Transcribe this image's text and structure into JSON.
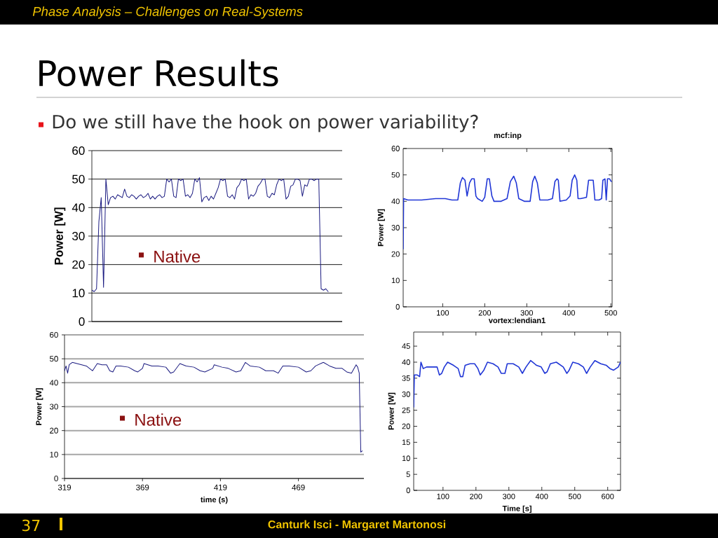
{
  "chart_data": [
    {
      "type": "other",
      "title": "Power Results",
      "annotations": [
        "Phase Analysis – Challenges on Real-Systems",
        "Do we still have the hook on power variability?",
        "37",
        "Canturk Isci - Margaret Martonosi"
      ]
    },
    {
      "type": "line",
      "ylabel": "Power [W]",
      "color": "#1a1a80",
      "ylim": [
        0,
        60
      ],
      "yticks": [
        0,
        10,
        20,
        30,
        40,
        50,
        60
      ],
      "grid": "y",
      "annotations": [
        "Native"
      ],
      "categories": [
        null,
        null,
        null,
        null,
        null,
        null,
        null,
        null,
        null,
        null,
        null,
        null,
        null,
        null,
        null,
        null,
        null,
        null,
        null,
        null,
        null,
        null,
        null,
        null,
        null,
        null,
        null,
        null,
        null,
        null,
        null,
        null,
        null,
        null,
        null,
        null,
        null,
        null,
        null,
        null,
        null,
        null,
        null,
        null,
        null,
        null,
        null,
        null,
        null,
        null,
        null,
        null,
        null,
        null,
        null,
        null,
        null,
        null,
        null,
        null,
        null,
        null,
        null,
        null,
        null,
        null,
        null,
        null,
        null,
        null,
        null,
        null,
        null,
        null,
        null,
        null,
        null,
        null,
        null,
        null,
        null,
        null,
        null,
        null,
        null,
        null,
        null,
        null,
        null,
        null,
        null,
        null,
        null,
        null,
        null,
        null,
        null,
        null,
        null,
        null,
        null,
        null,
        null,
        null,
        null,
        null,
        null,
        null
      ],
      "values": [
        11,
        10.5,
        11.5,
        35,
        43.5,
        12,
        50,
        41,
        43.5,
        44,
        43,
        44.5,
        44,
        43.5,
        46.5,
        44,
        43.5,
        44.5,
        44,
        43,
        44,
        44.5,
        43.5,
        44,
        45,
        43,
        44,
        43,
        44,
        44.5,
        43.5,
        44,
        50,
        49,
        50,
        44,
        43.5,
        50,
        49.5,
        50,
        44,
        44.5,
        43.5,
        45,
        50,
        49,
        50.5,
        42,
        43.5,
        44,
        42.5,
        44,
        43,
        45,
        47,
        50,
        49.5,
        50,
        44,
        43.5,
        44.5,
        43,
        47,
        48,
        50,
        49.5,
        50,
        43,
        44.5,
        44,
        45,
        47.5,
        48.5,
        50,
        50,
        44,
        43.5,
        45,
        44.5,
        48,
        50,
        49.5,
        50,
        43,
        44,
        47.5,
        48,
        50,
        50,
        49.5,
        44,
        48,
        47.5,
        50,
        50,
        49.5,
        50,
        50,
        11.5,
        11,
        11.5,
        10.5,
        null,
        null,
        null,
        null,
        null,
        null
      ]
    },
    {
      "type": "line",
      "title": "mcf:inp",
      "ylabel": "Power [W]",
      "color": "#2036d6",
      "xlim": [
        6,
        503
      ],
      "xticks": [
        100,
        200,
        300,
        400,
        500
      ],
      "ylim": [
        0,
        60
      ],
      "yticks": [
        0,
        10,
        20,
        30,
        40,
        50,
        60
      ],
      "x": [
        6,
        7,
        17,
        50,
        83,
        106,
        122,
        136,
        142,
        147,
        153,
        158,
        164,
        169,
        175,
        179,
        183,
        194,
        200,
        206,
        211,
        217,
        222,
        239,
        253,
        261,
        269,
        275,
        281,
        294,
        308,
        314,
        319,
        325,
        331,
        350,
        361,
        367,
        372,
        375,
        379,
        394,
        403,
        408,
        414,
        419,
        422,
        428,
        442,
        447,
        458,
        462,
        472,
        478,
        481,
        486,
        489,
        492,
        497,
        501
      ],
      "values": [
        22,
        41,
        40.5,
        40.5,
        41,
        41,
        40.5,
        40.5,
        47,
        49,
        48,
        42,
        47,
        48.5,
        48.5,
        42,
        41,
        40,
        41.5,
        48.5,
        48.5,
        42,
        40,
        40,
        41,
        47.5,
        49.5,
        47,
        41,
        40,
        40,
        47.5,
        49.5,
        47,
        40.5,
        40.5,
        41,
        47.5,
        48.5,
        48,
        40,
        40.5,
        42,
        48,
        50,
        48,
        41,
        41,
        41.5,
        48,
        48,
        40.5,
        40.5,
        41,
        48,
        48.5,
        40.5,
        48.5,
        48.5,
        47.5
      ]
    },
    {
      "type": "line",
      "xlabel": "time (s)",
      "ylabel": "Power [W]",
      "color": "#1a1a80",
      "xlim": [
        319,
        511
      ],
      "xticks": [
        319,
        369,
        419,
        469
      ],
      "ylim": [
        0,
        60
      ],
      "yticks": [
        0,
        10,
        20,
        30,
        40,
        50,
        60
      ],
      "grid": "y",
      "annotations": [
        "Native"
      ],
      "x": [
        319,
        320,
        321,
        322,
        324,
        327,
        330,
        333,
        336,
        337,
        340,
        343,
        346,
        348,
        350,
        352,
        355,
        360,
        364,
        366,
        369,
        370,
        375,
        379,
        384,
        387,
        389,
        393,
        397,
        402,
        406,
        409,
        414,
        415,
        420,
        424,
        429,
        432,
        435,
        438,
        444,
        448,
        453,
        456,
        459,
        463,
        469,
        474,
        477,
        480,
        485,
        489,
        493,
        497,
        500,
        503,
        506,
        507,
        508,
        509,
        510
      ],
      "values": [
        45,
        47,
        44,
        47.5,
        48.5,
        48,
        47.5,
        47,
        45.5,
        45,
        48,
        47.5,
        47.5,
        45,
        44.5,
        47,
        47,
        46.5,
        45,
        44.5,
        46,
        48,
        47,
        47,
        46.5,
        44,
        44.5,
        48,
        47,
        46.5,
        45,
        44.5,
        46,
        47.5,
        46.5,
        46,
        44.5,
        45,
        48.5,
        47,
        46.5,
        45,
        45,
        44,
        47,
        47,
        46.5,
        44.5,
        45,
        47,
        48.5,
        47,
        46,
        46,
        44.5,
        44,
        47.5,
        46.5,
        44,
        11,
        11.5
      ]
    },
    {
      "type": "line",
      "title": "vortex:lendian1",
      "xlabel": "Time [s]",
      "ylabel": "Power [W]",
      "color": "#2036d6",
      "xlim": [
        11,
        639
      ],
      "xticks": [
        100,
        200,
        300,
        400,
        500,
        600
      ],
      "ylim": [
        0,
        49.4
      ],
      "yticks": [
        0,
        5,
        10,
        15,
        20,
        25,
        30,
        35,
        40,
        45
      ],
      "x": [
        11,
        13,
        22,
        29,
        33,
        40,
        50,
        68,
        82,
        89,
        96,
        104,
        114,
        132,
        146,
        153,
        160,
        167,
        182,
        196,
        206,
        213,
        224,
        235,
        252,
        267,
        277,
        288,
        295,
        313,
        330,
        341,
        352,
        366,
        384,
        398,
        409,
        416,
        426,
        444,
        465,
        476,
        483,
        494,
        511,
        526,
        536,
        547,
        561,
        579,
        596,
        607,
        618,
        632,
        639
      ],
      "values": [
        26,
        36,
        36,
        35.5,
        40,
        38,
        38.5,
        38.5,
        38.5,
        36,
        36.5,
        38.5,
        40,
        39,
        38,
        35.5,
        35.5,
        39,
        39.5,
        39.5,
        38,
        36,
        37.5,
        40,
        39.5,
        38.5,
        36.5,
        36.5,
        39.5,
        39.5,
        38.5,
        36.5,
        38.5,
        40.5,
        39,
        38.5,
        36.5,
        37,
        39.5,
        40,
        38.5,
        36.5,
        37.5,
        40,
        39.5,
        38.5,
        36.5,
        38.5,
        40.5,
        39.5,
        39,
        38,
        37.5,
        38.5,
        40
      ]
    }
  ]
}
